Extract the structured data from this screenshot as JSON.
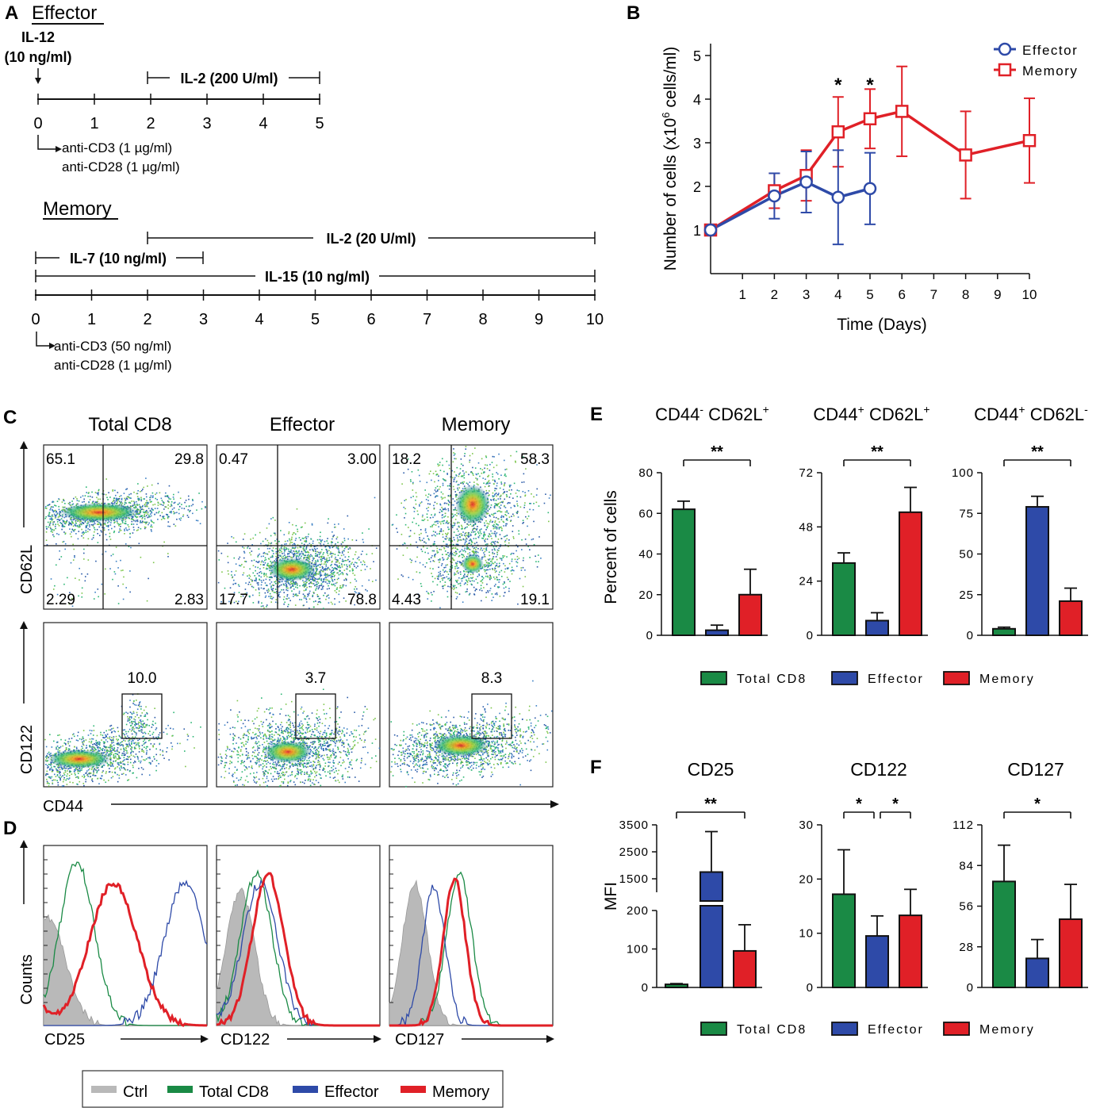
{
  "colors": {
    "blue": "#2e4aa8",
    "red": "#e02027",
    "green": "#1a8a45",
    "gray": "#b9b9b9",
    "heat_green": "#2bb673"
  },
  "panel_letters": [
    "A",
    "B",
    "C",
    "D",
    "E",
    "F"
  ],
  "panel_a": {
    "effector": {
      "title": "Effector",
      "il12_line1": "IL-12",
      "il12_line2": "(10 ng/ml)",
      "il2_label": "IL-2 (200 U/ml)",
      "ticks": [
        "0",
        "1",
        "2",
        "3",
        "4",
        "5"
      ],
      "stim_line1": "anti-CD3 (1 µg/ml)",
      "stim_line2": "anti-CD28 (1 µg/ml)"
    },
    "memory": {
      "title": "Memory",
      "il2_label": "IL-2 (20 U/ml)",
      "il7_label": "IL-7 (10 ng/ml)",
      "il15_label": "IL-15 (10 ng/ml)",
      "ticks": [
        "0",
        "1",
        "2",
        "3",
        "4",
        "5",
        "6",
        "7",
        "8",
        "9",
        "10"
      ],
      "stim_line1": "anti-CD3 (50 ng/ml)",
      "stim_line2": "anti-CD28 (1 µg/ml)"
    }
  },
  "panel_b": {
    "chart_data": {
      "type": "line",
      "xlabel": "Time (Days)",
      "ylabel_prefix": "Number of cells (x10",
      "ylabel_sup": "6",
      "ylabel_suffix": " cells/ml)",
      "x_ticks": [
        "1",
        "2",
        "3",
        "4",
        "5",
        "6",
        "7",
        "8",
        "9",
        "10"
      ],
      "y_ticks": [
        "1",
        "2",
        "3",
        "4",
        "5"
      ],
      "xlim": [
        0,
        10
      ],
      "ylim": [
        0,
        5
      ],
      "series": [
        {
          "name": "Effector",
          "color": "#2e4aa8",
          "marker": "circle",
          "x": [
            0,
            2,
            3,
            4,
            5
          ],
          "y": [
            1.0,
            1.78,
            2.1,
            1.75,
            1.95
          ],
          "err": [
            0.0,
            0.52,
            0.7,
            1.08,
            0.82
          ]
        },
        {
          "name": "Memory",
          "color": "#e02027",
          "marker": "square",
          "x": [
            0,
            2,
            3,
            4,
            5,
            6,
            8,
            10
          ],
          "y": [
            1.0,
            1.9,
            2.25,
            3.25,
            3.55,
            3.72,
            2.72,
            3.05
          ],
          "err": [
            0.0,
            0.4,
            0.58,
            0.8,
            0.68,
            1.03,
            1.0,
            0.97
          ]
        }
      ],
      "significance": [
        {
          "x": 4,
          "label": "*"
        },
        {
          "x": 5,
          "label": "*"
        }
      ]
    }
  },
  "panel_c": {
    "columns": [
      "Total CD8",
      "Effector",
      "Memory"
    ],
    "quadrants": [
      {
        "ul": "65.1",
        "ur": "29.8",
        "ll": "2.29",
        "lr": "2.83"
      },
      {
        "ul": "0.47",
        "ur": "3.00",
        "ll": "17.7",
        "lr": "78.8"
      },
      {
        "ul": "18.2",
        "ur": "58.3",
        "ll": "4.43",
        "lr": "19.1"
      }
    ],
    "gates": [
      "10.0",
      "3.7",
      "8.3"
    ],
    "y_label_top": "CD62L",
    "y_label_bottom": "CD122",
    "x_label": "CD44"
  },
  "panel_d": {
    "y_label": "Counts",
    "x_labels": [
      "CD25",
      "CD122",
      "CD127"
    ],
    "legend": [
      {
        "label": "Ctrl",
        "color": "#b9b9b9"
      },
      {
        "label": "Total CD8",
        "color": "#1a8a45"
      },
      {
        "label": "Effector",
        "color": "#2e4aa8"
      },
      {
        "label": "Memory",
        "color": "#e02027"
      }
    ]
  },
  "panel_e": {
    "chart_data": {
      "type": "bar",
      "ylabel": "Percent of cells",
      "groups": [
        "Total CD8",
        "Effector",
        "Memory"
      ],
      "subcharts": [
        {
          "title_parts": [
            "CD44",
            "-",
            " CD62L",
            "+"
          ],
          "ylim": [
            0,
            80
          ],
          "y_ticks": [
            "0",
            "20",
            "40",
            "60",
            "80"
          ],
          "values": [
            62,
            2.5,
            20
          ],
          "err": [
            4,
            2.5,
            12.5
          ],
          "significance": "**"
        },
        {
          "title_parts": [
            "CD44",
            "+",
            " CD62L",
            "+"
          ],
          "ylim": [
            0,
            72
          ],
          "y_ticks": [
            "0",
            "24",
            "48",
            "72"
          ],
          "values": [
            32,
            6.5,
            54.5
          ],
          "err": [
            4.5,
            3.5,
            11
          ],
          "significance": "**"
        },
        {
          "title_parts": [
            "CD44",
            "+",
            " CD62L",
            "-"
          ],
          "ylim": [
            0,
            100
          ],
          "y_ticks": [
            "0",
            "25",
            "50",
            "75",
            "100"
          ],
          "values": [
            4,
            79,
            21
          ],
          "err": [
            1,
            6.5,
            8
          ],
          "significance": "**"
        }
      ]
    },
    "legend": [
      "Total CD8",
      "Effector",
      "Memory"
    ]
  },
  "panel_f": {
    "chart_data": {
      "type": "bar",
      "ylabel": "MFI",
      "groups": [
        "Total CD8",
        "Effector",
        "Memory"
      ],
      "subcharts": [
        {
          "title": "CD25",
          "broken_axis": true,
          "y_ticks_lower": [
            "0",
            "100",
            "200"
          ],
          "y_ticks_upper": [
            "1500",
            "2500",
            "3500"
          ],
          "values": [
            8,
            1750,
            95
          ],
          "err": [
            2,
            1500,
            68
          ],
          "significance": [
            {
              "from": 0,
              "to": 2,
              "label": "**"
            }
          ]
        },
        {
          "title": "CD122",
          "ylim": [
            0,
            30
          ],
          "y_ticks": [
            "0",
            "10",
            "20",
            "30"
          ],
          "values": [
            17.2,
            9.5,
            13.3
          ],
          "err": [
            8.2,
            3.7,
            4.8
          ],
          "significance": [
            {
              "from": 0,
              "to": 1,
              "label": "*"
            },
            {
              "from": 1,
              "to": 2,
              "label": "*"
            }
          ]
        },
        {
          "title": "CD127",
          "ylim": [
            0,
            112
          ],
          "y_ticks": [
            "0",
            "28",
            "56",
            "84",
            "112"
          ],
          "values": [
            73,
            20,
            47
          ],
          "err": [
            25,
            13,
            24
          ],
          "significance": [
            {
              "from": 0,
              "to": 2,
              "label": "*"
            }
          ]
        }
      ]
    },
    "legend": [
      "Total CD8",
      "Effector",
      "Memory"
    ]
  }
}
